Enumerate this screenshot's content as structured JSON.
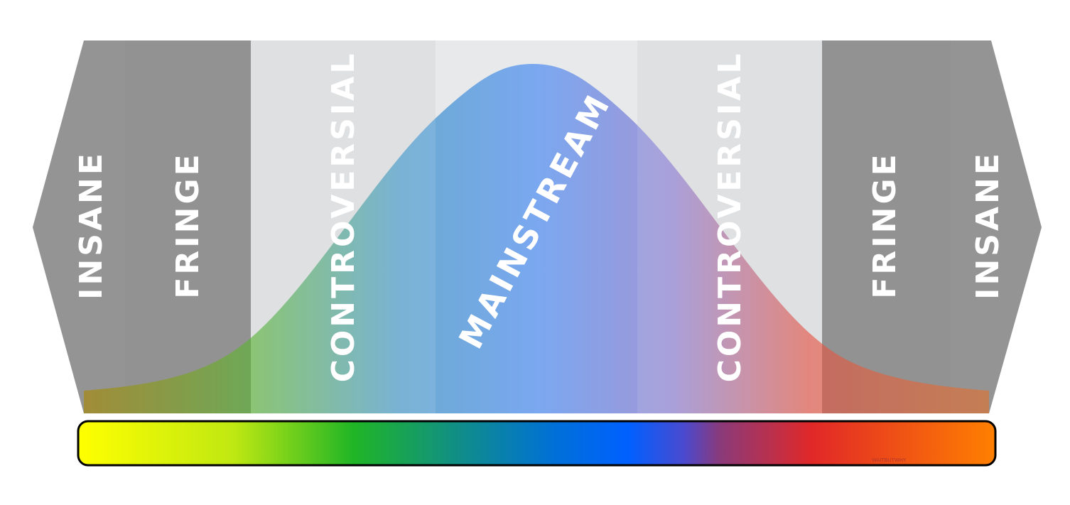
{
  "diagram": {
    "zones": [
      {
        "id": "insane-left",
        "label": "INSANE",
        "color": "#a9a9a9"
      },
      {
        "id": "fringe-left",
        "label": "FRINGE",
        "color": "#a9a9a9"
      },
      {
        "id": "controversial-left",
        "label": "CONTROVERSIAL",
        "color": "#dcdddf"
      },
      {
        "id": "mainstream",
        "label": "MAINSTREAM",
        "color": "#e8e9eb"
      },
      {
        "id": "controversial-right",
        "label": "CONTROVERSIAL",
        "color": "#dcdddf"
      },
      {
        "id": "fringe-right",
        "label": "FRINGE",
        "color": "#a9a9a9"
      },
      {
        "id": "insane-right",
        "label": "INSANE",
        "color": "#a9a9a9"
      }
    ],
    "spectrum_colors": [
      "#ffff00",
      "#20b526",
      "#0060ff",
      "#e12828",
      "#ff8000"
    ],
    "watermark": "WAITBUTWHY"
  }
}
